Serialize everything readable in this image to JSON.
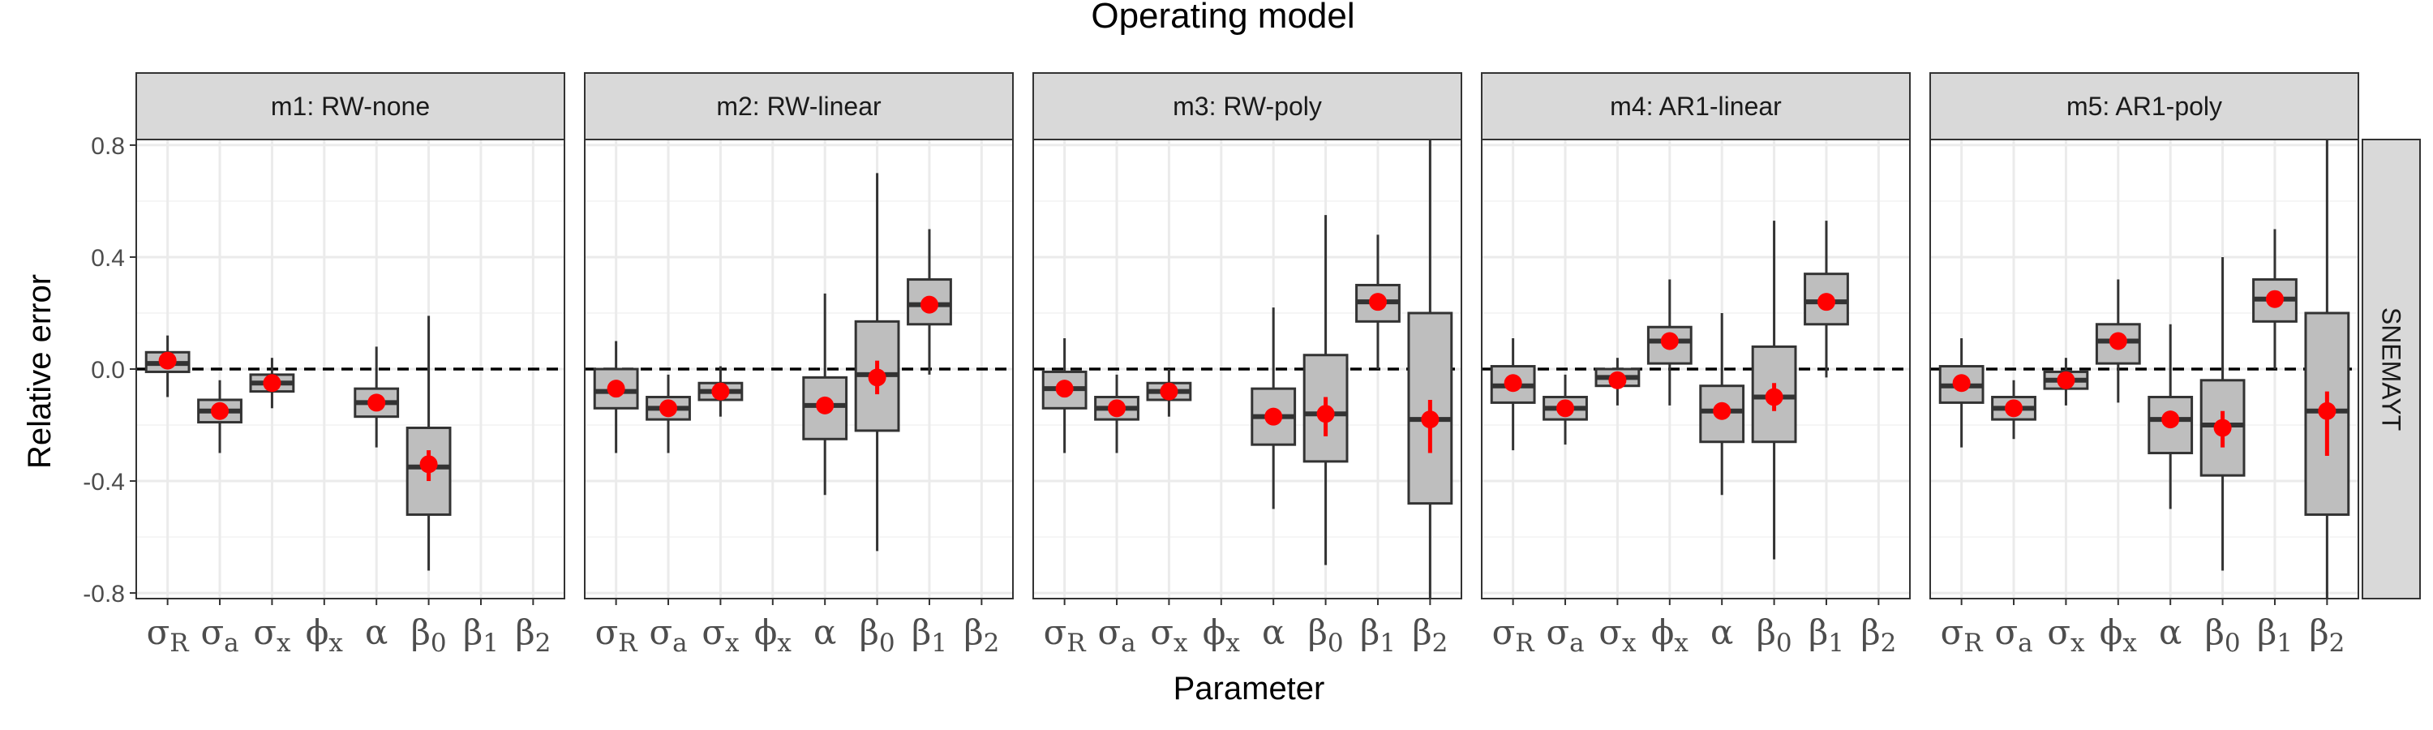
{
  "chart_data": {
    "type": "boxplot",
    "title": "Operating model",
    "xlabel": "Parameter",
    "ylabel": "Relative error",
    "ylim": [
      -0.82,
      0.82
    ],
    "yticks": [
      -0.8,
      -0.4,
      0.0,
      0.4,
      0.8
    ],
    "ytick_labels": [
      "-0.8",
      "-0.4",
      "0.0",
      "0.4",
      "0.8"
    ],
    "reference_line": 0,
    "grid": true,
    "row_label": "SNEMAYT",
    "parameters": [
      {
        "base": "σ",
        "sub": "R"
      },
      {
        "base": "σ",
        "sub": "a"
      },
      {
        "base": "σ",
        "sub": "x"
      },
      {
        "base": "ϕ",
        "sub": "x"
      },
      {
        "base": "α",
        "sub": ""
      },
      {
        "base": "β",
        "sub": "0"
      },
      {
        "base": "β",
        "sub": "1"
      },
      {
        "base": "β",
        "sub": "2"
      }
    ],
    "colors": {
      "box_fill": "#bebebe",
      "box_stroke": "#333333",
      "point": "#ff0000",
      "strip_fill": "#d9d9d9",
      "grid_major": "#ebebeb",
      "grid_minor": "#f5f5f5"
    },
    "panels": [
      {
        "label": "m1:  RW-none",
        "boxes": [
          {
            "param": 0,
            "lo": -0.1,
            "q1": -0.01,
            "med": 0.02,
            "q3": 0.06,
            "hi": 0.12,
            "mean": 0.03,
            "ci": [
              0.01,
              0.05
            ]
          },
          {
            "param": 1,
            "lo": -0.3,
            "q1": -0.19,
            "med": -0.15,
            "q3": -0.11,
            "hi": -0.04,
            "mean": -0.15,
            "ci": [
              -0.17,
              -0.13
            ]
          },
          {
            "param": 2,
            "lo": -0.14,
            "q1": -0.08,
            "med": -0.05,
            "q3": -0.02,
            "hi": 0.04,
            "mean": -0.05,
            "ci": [
              -0.07,
              -0.03
            ]
          },
          {
            "param": 4,
            "lo": -0.28,
            "q1": -0.17,
            "med": -0.12,
            "q3": -0.07,
            "hi": 0.08,
            "mean": -0.12,
            "ci": [
              -0.14,
              -0.1
            ]
          },
          {
            "param": 5,
            "lo": -0.72,
            "q1": -0.52,
            "med": -0.35,
            "q3": -0.21,
            "hi": 0.19,
            "mean": -0.34,
            "ci": [
              -0.4,
              -0.29
            ]
          }
        ]
      },
      {
        "label": "m2:  RW-linear",
        "boxes": [
          {
            "param": 0,
            "lo": -0.3,
            "q1": -0.14,
            "med": -0.08,
            "q3": 0.0,
            "hi": 0.1,
            "mean": -0.07,
            "ci": [
              -0.09,
              -0.05
            ]
          },
          {
            "param": 1,
            "lo": -0.3,
            "q1": -0.18,
            "med": -0.14,
            "q3": -0.1,
            "hi": -0.02,
            "mean": -0.14,
            "ci": [
              -0.16,
              -0.12
            ]
          },
          {
            "param": 2,
            "lo": -0.17,
            "q1": -0.11,
            "med": -0.08,
            "q3": -0.05,
            "hi": 0.01,
            "mean": -0.08,
            "ci": [
              -0.1,
              -0.06
            ]
          },
          {
            "param": 4,
            "lo": -0.45,
            "q1": -0.25,
            "med": -0.13,
            "q3": -0.03,
            "hi": 0.27,
            "mean": -0.13,
            "ci": [
              -0.15,
              -0.11
            ]
          },
          {
            "param": 5,
            "lo": -0.65,
            "q1": -0.22,
            "med": -0.02,
            "q3": 0.17,
            "hi": 0.7,
            "mean": -0.03,
            "ci": [
              -0.09,
              0.03
            ]
          },
          {
            "param": 6,
            "lo": -0.02,
            "q1": 0.16,
            "med": 0.23,
            "q3": 0.32,
            "hi": 0.5,
            "mean": 0.23,
            "ci": [
              0.21,
              0.25
            ]
          }
        ]
      },
      {
        "label": "m3:  RW-poly",
        "boxes": [
          {
            "param": 0,
            "lo": -0.3,
            "q1": -0.14,
            "med": -0.07,
            "q3": -0.01,
            "hi": 0.11,
            "mean": -0.07,
            "ci": [
              -0.09,
              -0.05
            ]
          },
          {
            "param": 1,
            "lo": -0.3,
            "q1": -0.18,
            "med": -0.14,
            "q3": -0.1,
            "hi": -0.02,
            "mean": -0.14,
            "ci": [
              -0.16,
              -0.12
            ]
          },
          {
            "param": 2,
            "lo": -0.17,
            "q1": -0.11,
            "med": -0.08,
            "q3": -0.05,
            "hi": 0.0,
            "mean": -0.08,
            "ci": [
              -0.1,
              -0.06
            ]
          },
          {
            "param": 4,
            "lo": -0.5,
            "q1": -0.27,
            "med": -0.17,
            "q3": -0.07,
            "hi": 0.22,
            "mean": -0.17,
            "ci": [
              -0.2,
              -0.14
            ]
          },
          {
            "param": 5,
            "lo": -0.7,
            "q1": -0.33,
            "med": -0.16,
            "q3": 0.05,
            "hi": 0.55,
            "mean": -0.16,
            "ci": [
              -0.24,
              -0.1
            ]
          },
          {
            "param": 6,
            "lo": 0.0,
            "q1": 0.17,
            "med": 0.24,
            "q3": 0.3,
            "hi": 0.48,
            "mean": 0.24,
            "ci": [
              0.22,
              0.26
            ]
          },
          {
            "param": 7,
            "lo": -0.82,
            "q1": -0.48,
            "med": -0.18,
            "q3": 0.2,
            "hi": 0.82,
            "mean": -0.18,
            "ci": [
              -0.3,
              -0.11
            ]
          }
        ]
      },
      {
        "label": "m4:  AR1-linear",
        "boxes": [
          {
            "param": 0,
            "lo": -0.29,
            "q1": -0.12,
            "med": -0.06,
            "q3": 0.01,
            "hi": 0.11,
            "mean": -0.05,
            "ci": [
              -0.07,
              -0.03
            ]
          },
          {
            "param": 1,
            "lo": -0.27,
            "q1": -0.18,
            "med": -0.14,
            "q3": -0.1,
            "hi": -0.02,
            "mean": -0.14,
            "ci": [
              -0.16,
              -0.12
            ]
          },
          {
            "param": 2,
            "lo": -0.13,
            "q1": -0.06,
            "med": -0.03,
            "q3": 0.0,
            "hi": 0.04,
            "mean": -0.04,
            "ci": [
              -0.06,
              -0.02
            ]
          },
          {
            "param": 3,
            "lo": -0.13,
            "q1": 0.02,
            "med": 0.1,
            "q3": 0.15,
            "hi": 0.32,
            "mean": 0.1,
            "ci": [
              0.08,
              0.12
            ]
          },
          {
            "param": 4,
            "lo": -0.45,
            "q1": -0.26,
            "med": -0.15,
            "q3": -0.06,
            "hi": 0.2,
            "mean": -0.15,
            "ci": [
              -0.18,
              -0.12
            ]
          },
          {
            "param": 5,
            "lo": -0.68,
            "q1": -0.26,
            "med": -0.1,
            "q3": 0.08,
            "hi": 0.53,
            "mean": -0.1,
            "ci": [
              -0.15,
              -0.05
            ]
          },
          {
            "param": 6,
            "lo": -0.03,
            "q1": 0.16,
            "med": 0.24,
            "q3": 0.34,
            "hi": 0.53,
            "mean": 0.24,
            "ci": [
              0.22,
              0.26
            ]
          }
        ]
      },
      {
        "label": "m5:  AR1-poly",
        "boxes": [
          {
            "param": 0,
            "lo": -0.28,
            "q1": -0.12,
            "med": -0.06,
            "q3": 0.01,
            "hi": 0.11,
            "mean": -0.05,
            "ci": [
              -0.07,
              -0.03
            ]
          },
          {
            "param": 1,
            "lo": -0.25,
            "q1": -0.18,
            "med": -0.14,
            "q3": -0.1,
            "hi": -0.04,
            "mean": -0.14,
            "ci": [
              -0.16,
              -0.12
            ]
          },
          {
            "param": 2,
            "lo": -0.13,
            "q1": -0.07,
            "med": -0.04,
            "q3": -0.01,
            "hi": 0.04,
            "mean": -0.04,
            "ci": [
              -0.06,
              -0.02
            ]
          },
          {
            "param": 3,
            "lo": -0.12,
            "q1": 0.02,
            "med": 0.1,
            "q3": 0.16,
            "hi": 0.32,
            "mean": 0.1,
            "ci": [
              0.08,
              0.12
            ]
          },
          {
            "param": 4,
            "lo": -0.5,
            "q1": -0.3,
            "med": -0.18,
            "q3": -0.1,
            "hi": 0.16,
            "mean": -0.18,
            "ci": [
              -0.2,
              -0.16
            ]
          },
          {
            "param": 5,
            "lo": -0.72,
            "q1": -0.38,
            "med": -0.2,
            "q3": -0.04,
            "hi": 0.4,
            "mean": -0.21,
            "ci": [
              -0.28,
              -0.15
            ]
          },
          {
            "param": 6,
            "lo": 0.0,
            "q1": 0.17,
            "med": 0.25,
            "q3": 0.32,
            "hi": 0.5,
            "mean": 0.25,
            "ci": [
              0.23,
              0.27
            ]
          },
          {
            "param": 7,
            "lo": -0.82,
            "q1": -0.52,
            "med": -0.15,
            "q3": 0.2,
            "hi": 0.82,
            "mean": -0.15,
            "ci": [
              -0.31,
              -0.08
            ]
          }
        ]
      }
    ]
  }
}
